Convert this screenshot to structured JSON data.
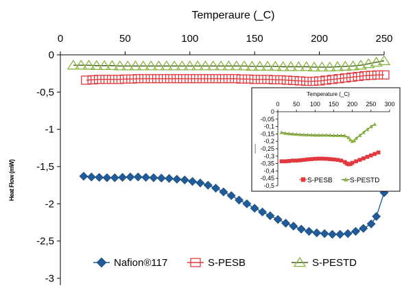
{
  "chart_data": [
    {
      "type": "line",
      "title": "",
      "xlabel": "Temperaure (_C)",
      "ylabel": "Heat Flow (mW)",
      "xlim": [
        0,
        250
      ],
      "ylim": [
        -3,
        0
      ],
      "x_ticks": [
        "0",
        "50",
        "100",
        "150",
        "200",
        "250"
      ],
      "y_ticks": [
        "0",
        "-0,5",
        "-1",
        "-1,5",
        "-2",
        "-2,5",
        "-3"
      ],
      "grid": false,
      "legend_position": "bottom",
      "series": [
        {
          "name": "Nafion®117",
          "color": "#1f5c99",
          "marker": "diamond",
          "x": [
            18,
            24,
            30,
            36,
            42,
            48,
            54,
            60,
            66,
            72,
            78,
            84,
            90,
            96,
            102,
            108,
            114,
            120,
            126,
            132,
            138,
            144,
            150,
            156,
            162,
            168,
            174,
            180,
            186,
            192,
            198,
            204,
            210,
            216,
            222,
            228,
            234,
            240,
            244,
            250
          ],
          "y": [
            -1.63,
            -1.64,
            -1.645,
            -1.65,
            -1.65,
            -1.645,
            -1.64,
            -1.64,
            -1.645,
            -1.65,
            -1.655,
            -1.66,
            -1.67,
            -1.68,
            -1.7,
            -1.72,
            -1.75,
            -1.79,
            -1.84,
            -1.89,
            -1.95,
            -2.0,
            -2.06,
            -2.11,
            -2.16,
            -2.21,
            -2.26,
            -2.3,
            -2.34,
            -2.37,
            -2.39,
            -2.4,
            -2.41,
            -2.41,
            -2.4,
            -2.37,
            -2.33,
            -2.27,
            -2.17,
            -1.85
          ]
        },
        {
          "name": "S-PESB",
          "color": "#e0393e",
          "marker": "square-open",
          "x": [
            20,
            25,
            30,
            35,
            40,
            45,
            50,
            55,
            60,
            65,
            70,
            75,
            80,
            85,
            90,
            95,
            100,
            105,
            110,
            115,
            120,
            125,
            130,
            135,
            140,
            145,
            150,
            155,
            160,
            165,
            170,
            175,
            180,
            185,
            190,
            195,
            200,
            205,
            210,
            215,
            220,
            225,
            230,
            235,
            240,
            245,
            250
          ],
          "y": [
            -0.34,
            -0.335,
            -0.33,
            -0.33,
            -0.33,
            -0.33,
            -0.325,
            -0.325,
            -0.32,
            -0.32,
            -0.32,
            -0.32,
            -0.32,
            -0.32,
            -0.32,
            -0.32,
            -0.32,
            -0.32,
            -0.32,
            -0.32,
            -0.32,
            -0.32,
            -0.32,
            -0.32,
            -0.325,
            -0.325,
            -0.33,
            -0.33,
            -0.33,
            -0.335,
            -0.335,
            -0.34,
            -0.345,
            -0.35,
            -0.355,
            -0.355,
            -0.35,
            -0.34,
            -0.33,
            -0.32,
            -0.31,
            -0.3,
            -0.29,
            -0.28,
            -0.275,
            -0.27,
            -0.27
          ]
        },
        {
          "name": "S-PESTD",
          "color": "#8ab43f",
          "line_color": "#3d5a1a",
          "marker": "triangle-open",
          "x": [
            10,
            16,
            22,
            28,
            34,
            40,
            46,
            52,
            58,
            64,
            70,
            76,
            82,
            88,
            94,
            100,
            106,
            112,
            118,
            124,
            130,
            136,
            142,
            148,
            154,
            160,
            166,
            172,
            178,
            184,
            190,
            196,
            202,
            208,
            214,
            220,
            226,
            232,
            238,
            244,
            250
          ],
          "y": [
            -0.14,
            -0.14,
            -0.14,
            -0.145,
            -0.145,
            -0.145,
            -0.15,
            -0.15,
            -0.15,
            -0.15,
            -0.15,
            -0.15,
            -0.15,
            -0.15,
            -0.15,
            -0.15,
            -0.15,
            -0.15,
            -0.15,
            -0.15,
            -0.15,
            -0.15,
            -0.15,
            -0.155,
            -0.155,
            -0.155,
            -0.155,
            -0.16,
            -0.16,
            -0.16,
            -0.16,
            -0.165,
            -0.165,
            -0.165,
            -0.16,
            -0.155,
            -0.15,
            -0.14,
            -0.12,
            -0.1,
            -0.08
          ]
        }
      ]
    },
    {
      "type": "line",
      "title": "",
      "xlabel": "Temperature (_C)",
      "ylabel": "Heat Flow",
      "xlim": [
        0,
        300
      ],
      "ylim": [
        -0.5,
        0
      ],
      "x_ticks": [
        "0",
        "50",
        "100",
        "150",
        "200",
        "250",
        "300"
      ],
      "y_ticks": [
        "0",
        "-0,05",
        "-0,1",
        "-0,15",
        "-0,2",
        "-0,25",
        "-0,3",
        "-0,35",
        "-0,4",
        "-0,45",
        "-0,5"
      ],
      "grid": false,
      "legend_position": "bottom",
      "series": [
        {
          "name": "S-PESB",
          "color": "#e0393e",
          "marker": "square",
          "x": [
            10,
            20,
            30,
            40,
            50,
            60,
            70,
            80,
            90,
            100,
            110,
            120,
            130,
            140,
            150,
            160,
            170,
            180,
            185,
            190,
            195,
            200,
            210,
            220,
            230,
            240,
            250,
            260,
            270
          ],
          "y": [
            -0.335,
            -0.335,
            -0.333,
            -0.33,
            -0.33,
            -0.328,
            -0.325,
            -0.322,
            -0.32,
            -0.318,
            -0.317,
            -0.317,
            -0.318,
            -0.32,
            -0.322,
            -0.325,
            -0.33,
            -0.34,
            -0.35,
            -0.355,
            -0.353,
            -0.345,
            -0.335,
            -0.325,
            -0.315,
            -0.305,
            -0.295,
            -0.285,
            -0.275
          ]
        },
        {
          "name": "S-PESTD",
          "color": "#8ab43f",
          "line_color": "#2f4a10",
          "marker": "triangle",
          "x": [
            10,
            20,
            30,
            40,
            50,
            60,
            70,
            80,
            90,
            100,
            110,
            120,
            130,
            140,
            150,
            160,
            170,
            180,
            190,
            195,
            200,
            205,
            210,
            220,
            230,
            240,
            250,
            260
          ],
          "y": [
            -0.14,
            -0.145,
            -0.148,
            -0.15,
            -0.152,
            -0.154,
            -0.155,
            -0.156,
            -0.157,
            -0.158,
            -0.158,
            -0.158,
            -0.158,
            -0.159,
            -0.16,
            -0.16,
            -0.16,
            -0.162,
            -0.175,
            -0.19,
            -0.2,
            -0.195,
            -0.18,
            -0.16,
            -0.14,
            -0.12,
            -0.1,
            -0.085
          ]
        }
      ]
    }
  ]
}
